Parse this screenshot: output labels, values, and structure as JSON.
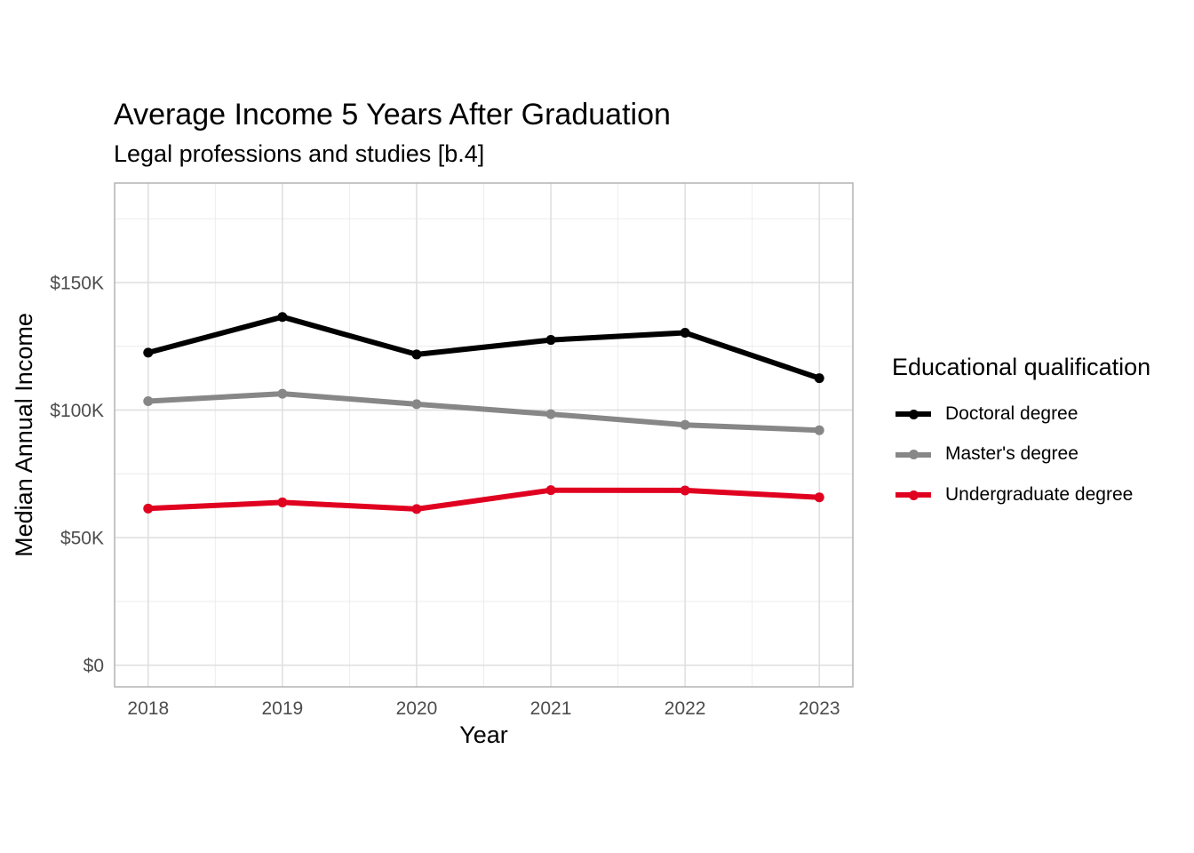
{
  "chart": {
    "title": "Average Income 5 Years After Graduation",
    "subtitle": "Legal professions and studies [b.4]"
  },
  "chart_data": {
    "type": "line",
    "title": "Average Income 5 Years After Graduation",
    "subtitle": "Legal professions and studies [b.4]",
    "xlabel": "Year",
    "ylabel": "Median Annual Income",
    "x": [
      2018,
      2019,
      2020,
      2021,
      2022,
      2023
    ],
    "x_tick_labels": [
      "2018",
      "2019",
      "2020",
      "2021",
      "2022",
      "2023"
    ],
    "xlim": [
      2017.75,
      2023.25
    ],
    "ylim": [
      -8500,
      189000
    ],
    "y_ticks": [
      0,
      50000,
      100000,
      150000
    ],
    "y_tick_labels": [
      "$0",
      "$50K",
      "$100K",
      "$150K"
    ],
    "grid": true,
    "legend": {
      "title": "Educational qualification",
      "position": "right"
    },
    "series": [
      {
        "name": "Doctoral degree",
        "color": "#000000",
        "values": [
          122500,
          136500,
          121800,
          127500,
          130300,
          112500
        ]
      },
      {
        "name": "Master's degree",
        "color": "#878787",
        "values": [
          103500,
          106400,
          102300,
          98400,
          94200,
          92100
        ]
      },
      {
        "name": "Undergraduate degree",
        "color": "#E00020",
        "values": [
          61400,
          63800,
          61200,
          68600,
          68500,
          65800
        ]
      }
    ]
  }
}
